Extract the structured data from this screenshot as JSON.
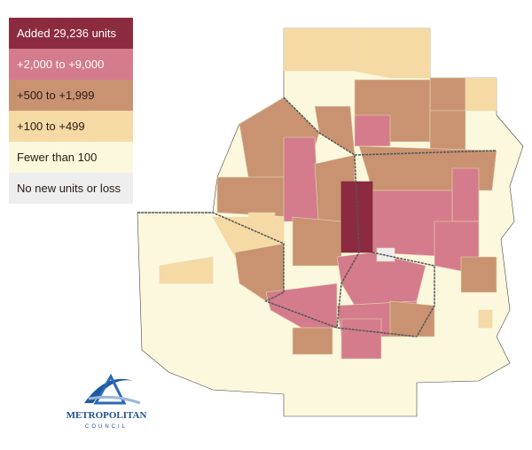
{
  "legend": {
    "items": [
      {
        "label": "Added 29,236 units",
        "color": "#8c2b40",
        "text_color": "#ffffff"
      },
      {
        "label": "+2,000 to +9,000",
        "color": "#d47c8c",
        "text_color": "#ffffff"
      },
      {
        "label": "+500 to +1,999",
        "color": "#c99372",
        "text_color": "#2a1a10"
      },
      {
        "label": "+100 to +499",
        "color": "#f6daa6",
        "text_color": "#2a1a10"
      },
      {
        "label": "Fewer than 100",
        "color": "#fcf8dd",
        "text_color": "#2a1a10"
      },
      {
        "label": "No new units or loss",
        "color": "#eeeeee",
        "text_color": "#2a1a10"
      }
    ]
  },
  "logo": {
    "name": "METROPOLITAN",
    "subtitle": "COUNCIL"
  }
}
